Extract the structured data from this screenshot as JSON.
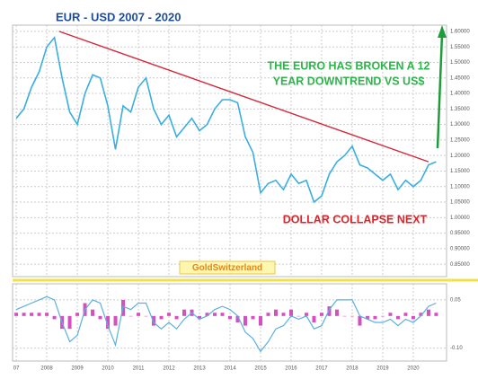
{
  "chart_data": [
    {
      "type": "line",
      "title": "EUR - USD   2007 - 2020",
      "annotations": [
        "THE EURO HAS BROKEN A 12",
        "YEAR DOWNTREND VS US$",
        "DOLLAR COLLAPSE NEXT",
        "GoldSwitzerland"
      ],
      "x": [
        2007,
        2007.25,
        2007.5,
        2007.75,
        2008,
        2008.25,
        2008.5,
        2008.75,
        2009,
        2009.25,
        2009.5,
        2009.75,
        2010,
        2010.25,
        2010.5,
        2010.75,
        2011,
        2011.25,
        2011.5,
        2011.75,
        2012,
        2012.25,
        2012.5,
        2012.75,
        2013,
        2013.25,
        2013.5,
        2013.75,
        2014,
        2014.25,
        2014.5,
        2014.75,
        2015,
        2015.25,
        2015.5,
        2015.75,
        2016,
        2016.25,
        2016.5,
        2016.75,
        2017,
        2017.25,
        2017.5,
        2017.75,
        2018,
        2018.25,
        2018.5,
        2018.75,
        2019,
        2019.25,
        2019.5,
        2019.75,
        2020,
        2020.25,
        2020.5,
        2020.75
      ],
      "series": [
        {
          "color": "#3aaee0",
          "values": [
            1.32,
            1.35,
            1.42,
            1.47,
            1.55,
            1.58,
            1.45,
            1.34,
            1.3,
            1.4,
            1.46,
            1.45,
            1.36,
            1.22,
            1.36,
            1.34,
            1.42,
            1.45,
            1.35,
            1.3,
            1.33,
            1.26,
            1.29,
            1.32,
            1.28,
            1.3,
            1.35,
            1.38,
            1.38,
            1.37,
            1.26,
            1.21,
            1.08,
            1.11,
            1.12,
            1.09,
            1.14,
            1.11,
            1.12,
            1.05,
            1.07,
            1.14,
            1.18,
            1.2,
            1.23,
            1.17,
            1.16,
            1.14,
            1.12,
            1.14,
            1.09,
            1.12,
            1.1,
            1.12,
            1.17,
            1.18
          ]
        },
        {
          "color": "#d4283a",
          "x": [
            2008.4,
            2020.5
          ],
          "values": [
            1.6,
            1.18
          ]
        }
      ],
      "xlim": [
        2006.88,
        2021.09
      ],
      "ylim": [
        0.81,
        1.62
      ],
      "yticks": [
        {
          "value": 0.85,
          "label": "0.85000"
        },
        {
          "value": 0.9,
          "label": "0.90000"
        },
        {
          "value": 0.95,
          "label": "0.95000"
        },
        {
          "value": 1,
          "label": "1.00000"
        },
        {
          "value": 1.05,
          "label": "1.05000"
        },
        {
          "value": 1.1,
          "label": "1.10000"
        },
        {
          "value": 1.15,
          "label": "1.15000"
        },
        {
          "value": 1.2,
          "label": "1.20000"
        },
        {
          "value": 1.25,
          "label": "1.25000"
        },
        {
          "value": 1.3,
          "label": "1.30000"
        },
        {
          "value": 1.35,
          "label": "1.35000"
        },
        {
          "value": 1.4,
          "label": "1.40000"
        },
        {
          "value": 1.45,
          "label": "1.45000"
        },
        {
          "value": 1.5,
          "label": "1.50000"
        },
        {
          "value": 1.55,
          "label": "1.55000"
        },
        {
          "value": 1.6,
          "label": "1.60000"
        }
      ],
      "grid": true
    },
    {
      "type": "bar",
      "series": [
        {
          "color": "#d64fc0",
          "values": [
            0.01,
            0.01,
            0.01,
            0.01,
            0.01,
            -0.01,
            -0.04,
            -0.04,
            0.01,
            0.04,
            0.02,
            -0.01,
            -0.04,
            -0.03,
            0.05,
            0,
            0.01,
            0,
            -0.03,
            -0.01,
            0.01,
            -0.01,
            0.02,
            0.02,
            -0.01,
            0.01,
            0.01,
            0.01,
            -0.01,
            -0.02,
            -0.03,
            -0.01,
            -0.03,
            0.01,
            0.02,
            0.01,
            0.02,
            0,
            0.01,
            -0.02,
            0.01,
            0.03,
            0.02,
            0,
            0,
            -0.03,
            -0.01,
            -0.01,
            0,
            0.01,
            -0.01,
            0.01,
            -0.01,
            0.01,
            0.02,
            0.01
          ]
        },
        {
          "type": "line",
          "color": "#5bb0e0",
          "values": [
            0.02,
            0.03,
            0.04,
            0.05,
            0.06,
            0.05,
            -0.02,
            -0.08,
            -0.06,
            0.02,
            0.05,
            0.04,
            -0.03,
            -0.09,
            0.03,
            0.02,
            0.04,
            0.04,
            -0.02,
            -0.04,
            -0.02,
            -0.04,
            -0.01,
            0.01,
            -0.01,
            0,
            0.02,
            0.03,
            0.02,
            0,
            -0.05,
            -0.07,
            -0.11,
            -0.08,
            -0.04,
            -0.03,
            0,
            -0.01,
            0,
            -0.04,
            -0.03,
            0.02,
            0.05,
            0.05,
            0.05,
            0,
            -0.01,
            -0.02,
            -0.02,
            -0.01,
            -0.03,
            -0.01,
            -0.02,
            0,
            0.03,
            0.04
          ]
        }
      ],
      "ylim": [
        -0.14,
        0.1
      ],
      "yticks": [
        {
          "value": -0.1,
          "label": "-0.10"
        },
        0.05
      ],
      "xticks": [
        {
          "value": 2007,
          "label": "07"
        },
        2008,
        2009,
        2010,
        2011,
        2012,
        2013,
        2014,
        2015,
        2016,
        2017,
        2018,
        2019,
        2020
      ]
    }
  ]
}
